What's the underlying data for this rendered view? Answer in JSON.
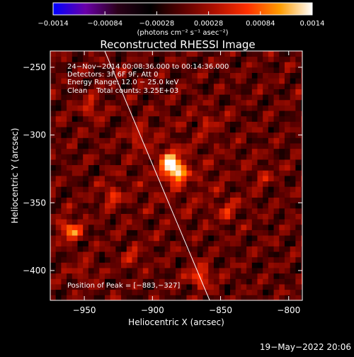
{
  "chart_data": {
    "type": "heatmap",
    "title": "Reconstructed RHESSI Image",
    "xlabel": "Heliocentric X (arcsec)",
    "ylabel": "Heliocentric Y (arcsec)",
    "xlim": [
      -975,
      -790
    ],
    "ylim": [
      -422,
      -238
    ],
    "xticks": [
      -950,
      -900,
      -850,
      -800
    ],
    "yticks": [
      -250,
      -300,
      -350,
      -400
    ],
    "xtick_labels": [
      "−950",
      "−900",
      "−850",
      "−800"
    ],
    "ytick_labels": [
      "−250",
      "−300",
      "−350",
      "−400"
    ],
    "colorbar": {
      "range": [
        -0.0014,
        0.0014
      ],
      "tick_values": [
        -0.0014,
        -0.00084,
        -0.00028,
        0.00028,
        0.00084,
        0.0014
      ],
      "tick_labels": [
        "−0.0014",
        "−0.00084",
        "−0.00028",
        "0.00028",
        "0.00084",
        "0.0014"
      ],
      "unit_label": "(photons cm⁻² s⁻¹ asec⁻²)",
      "colormap": [
        "#0000ff",
        "#6a00a8",
        "#2a0018",
        "#000000",
        "#5a0000",
        "#b01000",
        "#ff3000",
        "#ff9c00",
        "#ffffff"
      ]
    },
    "annotations": [
      "24−Nov−2014 00:08:36.000 to 00:14:36.000",
      "Detectors: 3F 6F 9F, Att 0",
      "Energy Range: 12.0 − 25.0 keV",
      "Clean    Total counts: 3.25E+03"
    ],
    "peak_label": "Position of Peak = [−883,−327]",
    "peak": {
      "x": -883,
      "y": -327,
      "value": 0.0014
    },
    "sources": [
      {
        "x": -883,
        "y": -327,
        "value": 0.00135
      },
      {
        "x": -888,
        "y": -318,
        "value": 0.0009
      },
      {
        "x": -960,
        "y": -370,
        "value": 0.0009
      },
      {
        "x": -865,
        "y": -404,
        "value": 0.0008
      },
      {
        "x": -930,
        "y": -345,
        "value": 0.00055
      },
      {
        "x": -945,
        "y": -280,
        "value": 0.0005
      },
      {
        "x": -910,
        "y": -300,
        "value": 0.00045
      },
      {
        "x": -845,
        "y": -355,
        "value": 0.0004
      },
      {
        "x": -820,
        "y": -330,
        "value": 0.0003
      },
      {
        "x": -950,
        "y": -400,
        "value": 0.00035
      },
      {
        "x": -860,
        "y": -290,
        "value": 0.0003
      },
      {
        "x": -915,
        "y": -390,
        "value": 0.00035
      }
    ],
    "limb_line": {
      "x": [
        -935,
        -858
      ],
      "y": [
        -238,
        -422
      ]
    },
    "timestamp": "19−May−2022 20:06"
  }
}
